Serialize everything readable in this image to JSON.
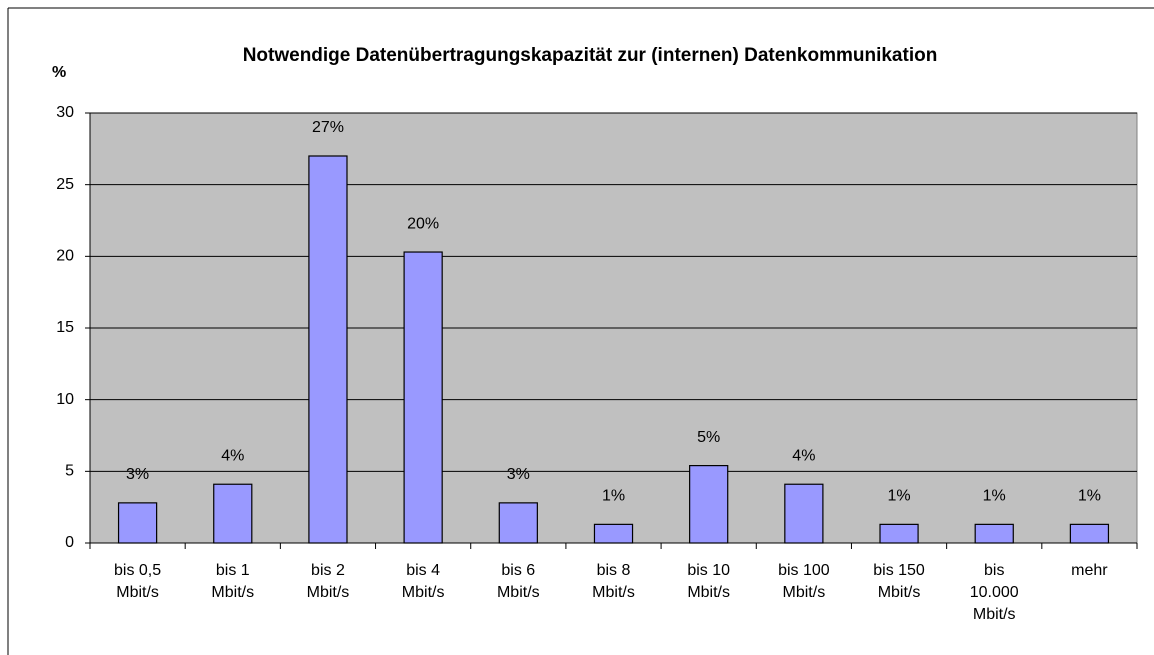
{
  "chart_data": {
    "type": "bar",
    "title": "Notwendige Datenübertragungskapazität zur (internen) Datenkommunikation",
    "y_label": "%",
    "categories": [
      "bis 0,5 Mbit/s",
      "bis 1 Mbit/s",
      "bis 2 Mbit/s",
      "bis 4 Mbit/s",
      "bis 6 Mbit/s",
      "bis 8 Mbit/s",
      "bis 10 Mbit/s",
      "bis 100 Mbit/s",
      "bis 150 Mbit/s",
      "bis 10.000 Mbit/s",
      "mehr"
    ],
    "values": [
      2.8,
      4.1,
      27.0,
      20.3,
      2.8,
      1.3,
      5.4,
      4.1,
      1.3,
      1.3,
      1.3
    ],
    "value_labels": [
      "3%",
      "4%",
      "27%",
      "20%",
      "3%",
      "1%",
      "5%",
      "4%",
      "1%",
      "1%",
      "1%"
    ],
    "color": "#9999ff",
    "ylim": [
      0,
      30
    ],
    "yticks": [
      0,
      5,
      10,
      15,
      20,
      25,
      30
    ],
    "grid": true
  }
}
